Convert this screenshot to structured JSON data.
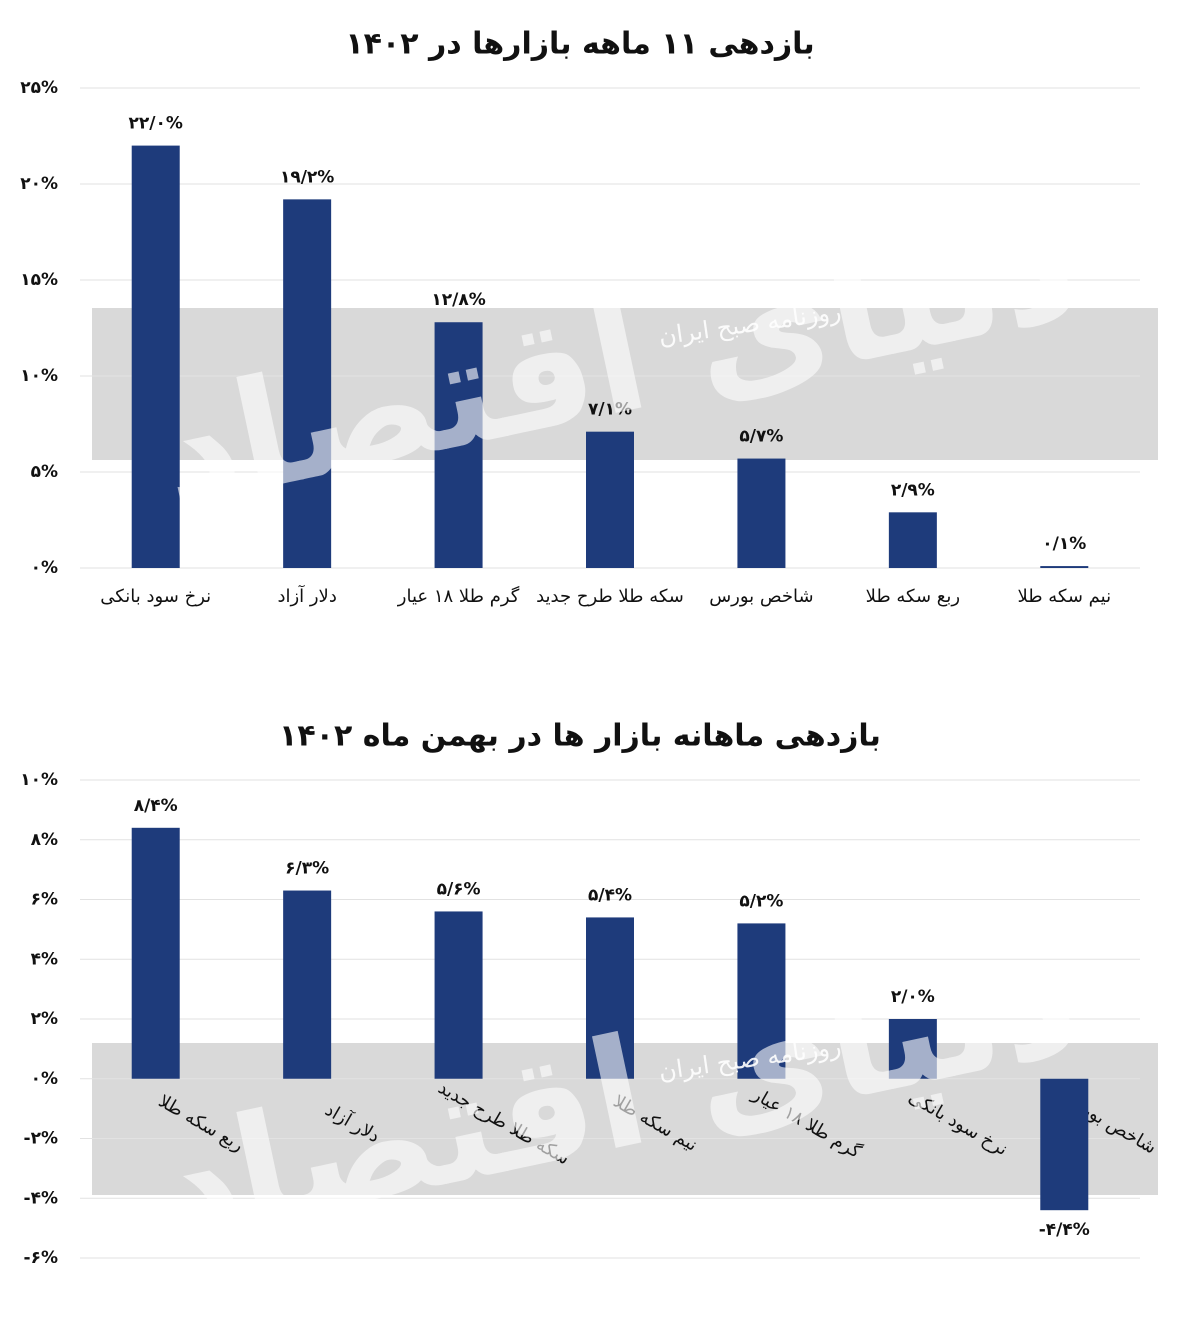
{
  "chart_data": [
    {
      "type": "bar",
      "title": "بازدهی ۱۱ ماهه بازارها در ۱۴۰۲",
      "categories": [
        "نرخ سود بانکی",
        "دلار آزاد",
        "گرم طلا ۱۸ عیار",
        "سکه طلا طرح جدید",
        "شاخص بورس",
        "ربع سکه طلا",
        "نیم سکه طلا"
      ],
      "values": [
        22.0,
        19.2,
        12.8,
        7.1,
        5.7,
        2.9,
        0.1
      ],
      "value_labels": [
        "۲۲/۰%",
        "۱۹/۲%",
        "۱۲/۸%",
        "۷/۱%",
        "۵/۷%",
        "۲/۹%",
        "۰/۱%"
      ],
      "color": "#1e3b7b",
      "ylim": [
        0,
        25
      ],
      "yticks": [
        {
          "value": 0,
          "label": "۰%"
        },
        {
          "value": 5,
          "label": "۵%"
        },
        {
          "value": 10,
          "label": "۱۰%"
        },
        {
          "value": 15,
          "label": "۱۵%"
        },
        {
          "value": 20,
          "label": "۲۰%"
        },
        {
          "value": 25,
          "label": "۲۵%"
        }
      ],
      "grid": true
    },
    {
      "type": "bar",
      "title": "بازدهی ماهانه بازار ها در بهمن ماه ۱۴۰۲",
      "categories": [
        "ربع سکه طلا",
        "دلار آزاد",
        "سکه طلا طرح جدید",
        "نیم سکه طلا",
        "گرم طلا ۱۸ عیار",
        "نرخ سود بانکی",
        "شاخص بورس"
      ],
      "values": [
        8.4,
        6.3,
        5.6,
        5.4,
        5.2,
        2.0,
        -4.4
      ],
      "value_labels": [
        "۸/۴%",
        "۶/۳%",
        "۵/۶%",
        "۵/۴%",
        "۵/۲%",
        "۲/۰%",
        "-۴/۴%"
      ],
      "color": "#1e3b7b",
      "ylim": [
        -6,
        10
      ],
      "yticks": [
        {
          "value": -6,
          "label": "-۶%"
        },
        {
          "value": -4,
          "label": "-۴%"
        },
        {
          "value": -2,
          "label": "-۲%"
        },
        {
          "value": 0,
          "label": "۰%"
        },
        {
          "value": 2,
          "label": "۲%"
        },
        {
          "value": 4,
          "label": "۴%"
        },
        {
          "value": 6,
          "label": "۶%"
        },
        {
          "value": 8,
          "label": "۸%"
        },
        {
          "value": 10,
          "label": "۱۰%"
        }
      ],
      "grid": true
    }
  ],
  "watermark": {
    "brand": "دنیای اقتصاد",
    "tagline": "روزنامه صبح ایران"
  }
}
